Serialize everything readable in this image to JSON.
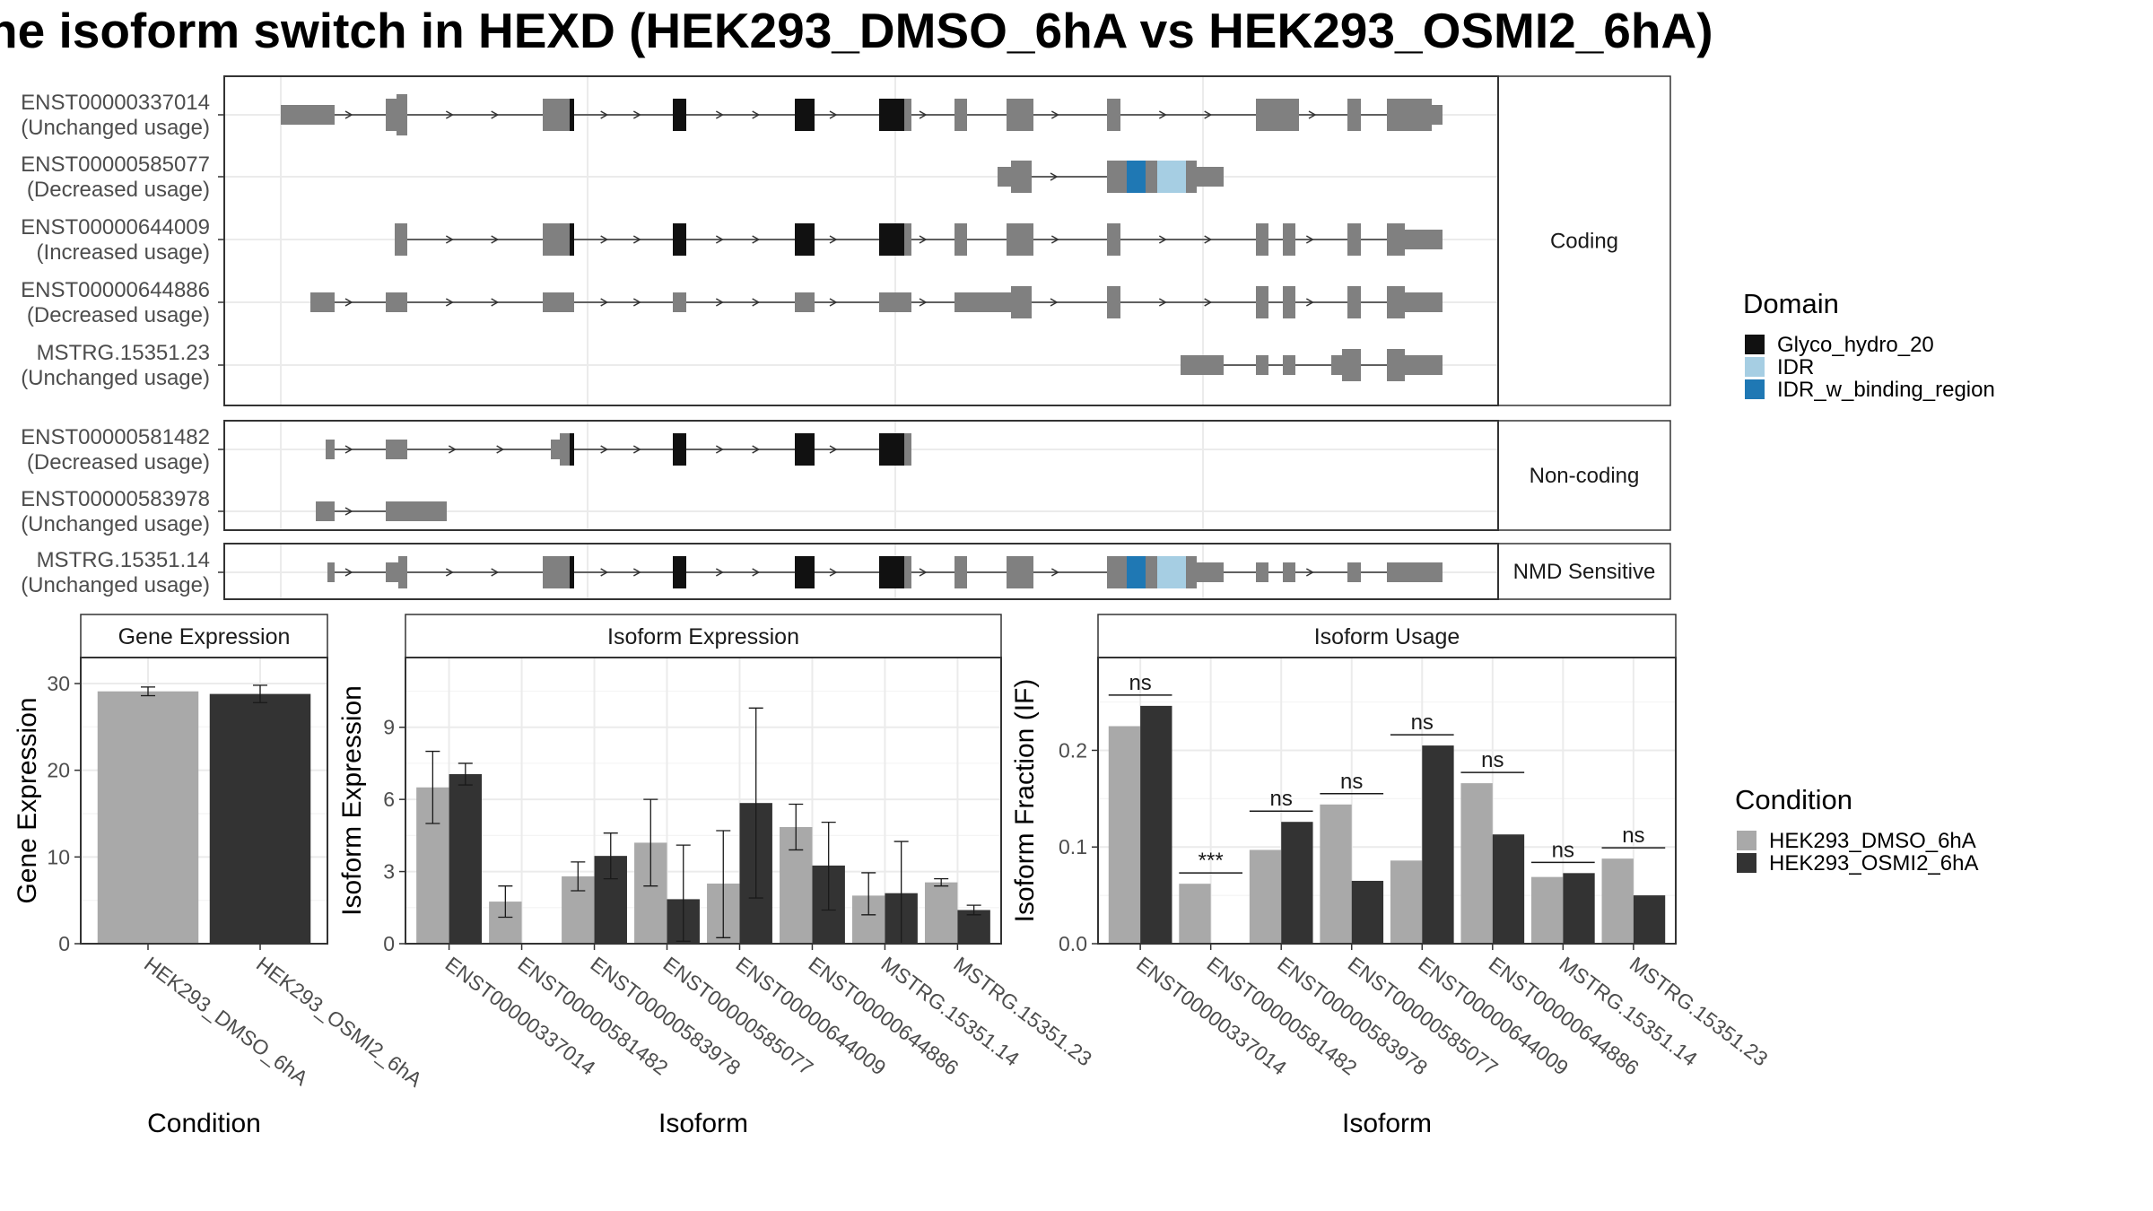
{
  "title": "he isoform switch in HEXD (HEK293_DMSO_6hA vs HEK293_OSMI2_6hA)",
  "colors": {
    "exon": "#808080",
    "glyco": "#111111",
    "idr": "#A6CEE3",
    "idr_binding": "#1F78B4",
    "dmso": "#A9A9A9",
    "osmi2": "#333333",
    "strip_bg": "#ffffff",
    "grid": "#ebebeb"
  },
  "legends": {
    "domain": {
      "title": "Domain",
      "entries": [
        {
          "label": "Glyco_hydro_20",
          "color": "#111111"
        },
        {
          "label": "IDR",
          "color": "#A6CEE3"
        },
        {
          "label": "IDR_w_binding_region",
          "color": "#1F78B4"
        }
      ]
    },
    "condition": {
      "title": "Condition",
      "entries": [
        {
          "label": "HEK293_DMSO_6hA",
          "color": "#A9A9A9"
        },
        {
          "label": "HEK293_OSMI2_6hA",
          "color": "#333333"
        }
      ]
    }
  },
  "structure": {
    "groups": [
      {
        "label": "Coding",
        "isoforms": [
          {
            "id": "ENST00000337014",
            "usage": "(Unchanged usage)"
          },
          {
            "id": "ENST00000585077",
            "usage": "(Decreased usage)"
          },
          {
            "id": "ENST00000644009",
            "usage": "(Increased usage)"
          },
          {
            "id": "ENST00000644886",
            "usage": "(Decreased usage)"
          },
          {
            "id": "MSTRG.15351.23",
            "usage": "(Unchanged usage)"
          }
        ]
      },
      {
        "label": "Non-coding",
        "isoforms": [
          {
            "id": "ENST00000581482",
            "usage": "(Decreased usage)"
          },
          {
            "id": "ENST00000583978",
            "usage": "(Unchanged usage)"
          }
        ]
      },
      {
        "label": "NMD Sensitive",
        "isoforms": [
          {
            "id": "MSTRG.15351.14",
            "usage": "(Unchanged usage)"
          }
        ]
      }
    ]
  },
  "chart_data": [
    {
      "type": "bar",
      "title": "Gene Expression",
      "xlabel": "Condition",
      "ylabel": "Gene Expression",
      "ylim": [
        0,
        33
      ],
      "yticks": [
        0,
        10,
        20,
        30
      ],
      "categories": [
        "HEK293_DMSO_6hA",
        "HEK293_OSMI2_6hA"
      ],
      "values": [
        29.1,
        28.8
      ],
      "errors": [
        [
          28.6,
          29.6
        ],
        [
          27.8,
          29.8
        ]
      ]
    },
    {
      "type": "bar",
      "title": "Isoform Expression",
      "xlabel": "Isoform",
      "ylabel": "Isoform Expression",
      "ylim": [
        0,
        11.9
      ],
      "yticks": [
        0,
        3,
        6,
        9
      ],
      "categories": [
        "ENST00000337014",
        "ENST00000581482",
        "ENST00000583978",
        "ENST00000585077",
        "ENST00000644009",
        "ENST00000644886",
        "MSTRG.15351.14",
        "MSTRG.15351.23"
      ],
      "series": [
        {
          "name": "HEK293_DMSO_6hA",
          "values": [
            6.5,
            1.75,
            2.8,
            4.2,
            2.5,
            4.85,
            2.0,
            2.55
          ],
          "errors": [
            [
              5.0,
              8.0
            ],
            [
              1.1,
              2.4
            ],
            [
              2.2,
              3.4
            ],
            [
              2.4,
              6.0
            ],
            [
              0.25,
              4.7
            ],
            [
              3.9,
              5.8
            ],
            [
              1.2,
              2.95
            ],
            [
              2.4,
              2.7
            ]
          ]
        },
        {
          "name": "HEK293_OSMI2_6hA",
          "values": [
            7.05,
            0,
            3.65,
            1.85,
            5.85,
            3.25,
            2.1,
            1.4
          ],
          "errors": [
            [
              6.6,
              7.5
            ],
            [
              0,
              0
            ],
            [
              2.7,
              4.6
            ],
            [
              0.1,
              4.1
            ],
            [
              1.9,
              9.8
            ],
            [
              1.4,
              5.05
            ],
            [
              0,
              4.25
            ],
            [
              1.2,
              1.6
            ]
          ]
        }
      ]
    },
    {
      "type": "bar",
      "title": "Isoform Usage",
      "xlabel": "Isoform",
      "ylabel": "Isoform Fraction (IF)",
      "ylim": [
        0,
        0.296
      ],
      "yticks": [
        0.0,
        0.1,
        0.2
      ],
      "ytick_labels": [
        "0.0",
        "0.1",
        "0.2"
      ],
      "categories": [
        "ENST00000337014",
        "ENST00000581482",
        "ENST00000583978",
        "ENST00000585077",
        "ENST00000644009",
        "ENST00000644886",
        "MSTRG.15351.14",
        "MSTRG.15351.23"
      ],
      "series": [
        {
          "name": "HEK293_DMSO_6hA",
          "values": [
            0.225,
            0.062,
            0.097,
            0.144,
            0.086,
            0.166,
            0.069,
            0.088
          ]
        },
        {
          "name": "HEK293_OSMI2_6hA",
          "values": [
            0.246,
            0.0,
            0.126,
            0.065,
            0.205,
            0.113,
            0.073,
            0.05
          ]
        }
      ],
      "significance": [
        "ns",
        "***",
        "ns",
        "ns",
        "ns",
        "ns",
        "ns",
        "ns"
      ]
    }
  ]
}
